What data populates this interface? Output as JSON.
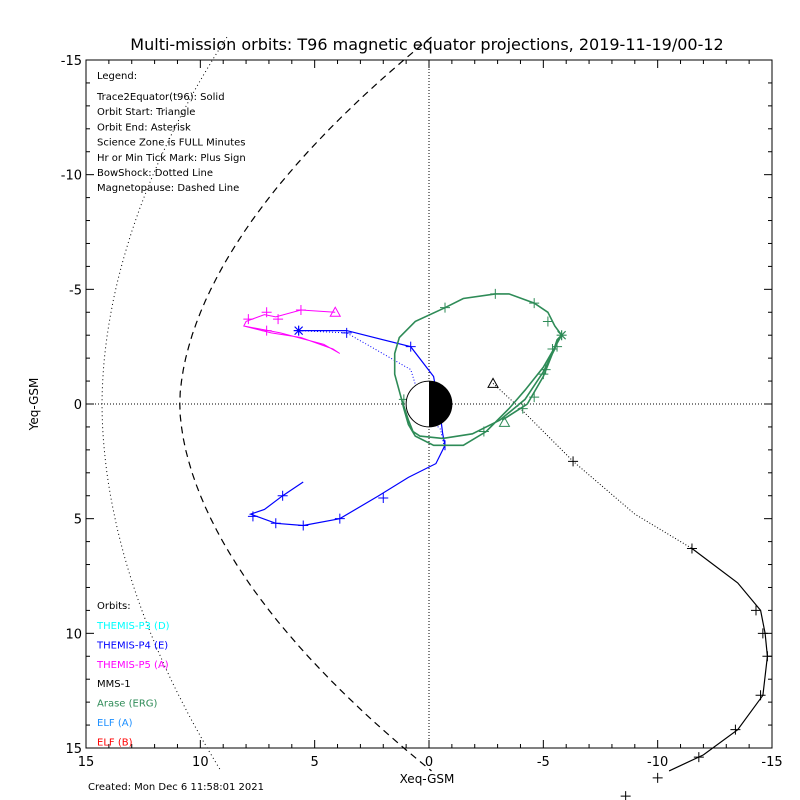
{
  "chart_data": {
    "type": "line",
    "title": "Multi-mission orbits: T96 magnetic equator projections, 2019-11-19/00-12",
    "xlabel": "Xeq-GSM",
    "ylabel": "Yeq-GSM",
    "xlim": [
      15,
      -15
    ],
    "ylim": [
      -15,
      15
    ],
    "xticks": [
      15,
      10,
      5,
      0,
      -5,
      -10,
      -15
    ],
    "xtick_labels": [
      "15",
      "10",
      "5",
      "0",
      "-5",
      "-10",
      "-15"
    ],
    "yticks": [
      -15,
      -10,
      -5,
      0,
      5,
      10,
      15
    ],
    "ytick_labels": [
      "-15",
      "-10",
      "-5",
      "0",
      "5",
      "10",
      "15"
    ],
    "created": "Created: Mon Dec  6 11:58:01 2021",
    "legend_title": "Legend:",
    "legend_lines": [
      "Trace2Equator(t96): Solid",
      "Orbit Start: Triangle",
      "Orbit End: Asterisk",
      "Science Zone is FULL Minutes",
      "Hr or Min Tick Mark: Plus Sign",
      "BowShock: Dotted Line",
      "Magnetopause: Dashed Line"
    ],
    "orbits_title": "Orbits:",
    "orbit_labels": [
      {
        "name": "THEMIS-P3 (D)",
        "color": "#00ffff"
      },
      {
        "name": "THEMIS-P4 (E)",
        "color": "#0000ff"
      },
      {
        "name": "THEMIS-P5 (A)",
        "color": "#ff00ff"
      },
      {
        "name": "MMS-1",
        "color": "#000000"
      },
      {
        "name": "Arase (ERG)",
        "color": "#2e8b57"
      },
      {
        "name": "ELF (A)",
        "color": "#1e90ff"
      },
      {
        "name": "ELF (B)",
        "color": "#ff0000"
      }
    ],
    "series": [
      {
        "name": "THEMIS-P4 (E)",
        "color": "#0000ff",
        "points": [
          [
            -0.7,
            2.0
          ],
          [
            -0.5,
            1.1
          ],
          [
            0.2,
            0.4
          ],
          [
            0.8,
            -1.5
          ],
          [
            3.6,
            -3.1
          ],
          [
            5.7,
            -3.2
          ],
          [
            5.7,
            -3.2
          ],
          [
            3.6,
            -3.2
          ],
          [
            0.8,
            -2.5
          ],
          [
            -0.2,
            -1.2
          ],
          [
            -0.5,
            0.5
          ],
          [
            -0.6,
            1.3
          ],
          [
            -0.7,
            1.8
          ],
          [
            -0.3,
            2.6
          ],
          [
            0.9,
            3.2
          ],
          [
            2.2,
            4.0
          ],
          [
            3.9,
            5.0
          ],
          [
            5.5,
            5.3
          ],
          [
            6.7,
            5.2
          ],
          [
            7.8,
            4.8
          ],
          [
            7.2,
            4.6
          ],
          [
            6.4,
            4.0
          ],
          [
            5.5,
            3.4
          ]
        ],
        "dotted_segment_end_index": 5,
        "ticks": [
          [
            0.8,
            -2.5
          ],
          [
            3.6,
            -3.1
          ],
          [
            -0.7,
            1.8
          ],
          [
            2.0,
            4.1
          ],
          [
            3.9,
            5.0
          ],
          [
            5.5,
            5.3
          ],
          [
            6.7,
            5.2
          ],
          [
            7.7,
            4.9
          ],
          [
            6.4,
            4.0
          ]
        ],
        "end": [
          5.7,
          -3.2
        ]
      },
      {
        "name": "THEMIS-P5 (A)",
        "color": "#ff00ff",
        "points": [
          [
            4.1,
            -4.0
          ],
          [
            5.6,
            -4.1
          ],
          [
            6.7,
            -3.8
          ],
          [
            7.2,
            -3.9
          ],
          [
            8.0,
            -3.6
          ],
          [
            8.1,
            -3.4
          ],
          [
            6.5,
            -3.1
          ],
          [
            4.6,
            -2.6
          ],
          [
            3.9,
            -2.2
          ],
          [
            4.2,
            -2.4
          ],
          [
            5.6,
            -2.9
          ],
          [
            6.9,
            -3.1
          ],
          [
            8.1,
            -3.4
          ]
        ],
        "start": [
          4.1,
          -4.0
        ],
        "ticks": [
          [
            5.6,
            -4.1
          ],
          [
            6.6,
            -3.7
          ],
          [
            7.1,
            -4.0
          ],
          [
            7.9,
            -3.7
          ],
          [
            7.1,
            -3.2
          ]
        ]
      },
      {
        "name": "MMS-1",
        "color": "#000000",
        "points": [
          [
            -2.8,
            -0.9
          ],
          [
            -4.0,
            0.2
          ],
          [
            -6.3,
            2.5
          ],
          [
            -9.0,
            4.8
          ],
          [
            -11.5,
            6.3
          ],
          [
            -13.5,
            7.8
          ],
          [
            -14.5,
            9.0
          ],
          [
            -14.7,
            10.0
          ],
          [
            -14.8,
            11.0
          ],
          [
            -14.6,
            12.7
          ],
          [
            -13.5,
            14.2
          ],
          [
            -12.0,
            15.3
          ],
          [
            -10.5,
            16.0
          ]
        ],
        "dotted_segment_end_index": 4,
        "start": [
          -2.8,
          -0.9
        ],
        "ticks": [
          [
            -6.3,
            2.5
          ],
          [
            -11.5,
            6.3
          ],
          [
            -14.3,
            9.0
          ],
          [
            -14.6,
            10.0
          ],
          [
            -14.8,
            11.0
          ],
          [
            -14.5,
            12.7
          ],
          [
            -13.4,
            14.2
          ],
          [
            -11.8,
            15.4
          ],
          [
            -10.0,
            16.3
          ],
          [
            -8.6,
            17.1
          ]
        ]
      },
      {
        "name": "Arase (ERG)",
        "color": "#2e8b57",
        "points": [
          [
            -3.2,
            0.7
          ],
          [
            -4.3,
            0.0
          ],
          [
            -5.0,
            -1.2
          ],
          [
            -5.4,
            -2.2
          ],
          [
            -5.6,
            -2.8
          ],
          [
            -5.8,
            -3.0
          ],
          [
            -5.5,
            -3.4
          ],
          [
            -5.2,
            -4.0
          ],
          [
            -4.6,
            -4.4
          ],
          [
            -3.5,
            -4.8
          ],
          [
            -2.9,
            -4.8
          ],
          [
            -1.5,
            -4.6
          ],
          [
            -0.7,
            -4.2
          ],
          [
            0.6,
            -3.6
          ],
          [
            1.3,
            -2.9
          ],
          [
            1.5,
            -2.2
          ],
          [
            1.5,
            -1.3
          ],
          [
            1.2,
            -0.2
          ],
          [
            0.9,
            0.7
          ],
          [
            0.7,
            1.2
          ],
          [
            0.4,
            1.4
          ],
          [
            -0.6,
            1.5
          ],
          [
            -1.9,
            1.3
          ],
          [
            -3.1,
            0.7
          ],
          [
            -4.2,
            -0.2
          ],
          [
            -5.0,
            -1.4
          ],
          [
            -5.5,
            -2.4
          ],
          [
            -5.6,
            -2.8
          ],
          [
            -5.8,
            -3.0
          ],
          [
            -5.4,
            -2.3
          ],
          [
            -5.0,
            -1.6
          ],
          [
            -4.2,
            -0.6
          ],
          [
            -3.5,
            0.2
          ],
          [
            -2.5,
            1.2
          ],
          [
            -1.5,
            1.8
          ],
          [
            -0.2,
            1.8
          ],
          [
            0.6,
            1.4
          ],
          [
            0.9,
            0.9
          ],
          [
            1.1,
            0.2
          ],
          [
            1.2,
            -0.2
          ]
        ],
        "start": [
          -3.3,
          0.8
        ],
        "end": [
          -5.8,
          -3.0
        ],
        "ticks": [
          [
            -2.4,
            1.2
          ],
          [
            -4.1,
            0.2
          ],
          [
            -4.6,
            -0.3
          ],
          [
            -5.0,
            -1.3
          ],
          [
            -5.1,
            -1.5
          ],
          [
            -5.4,
            -2.4
          ],
          [
            -5.6,
            -2.5
          ],
          [
            -5.2,
            -3.6
          ],
          [
            -4.6,
            -4.4
          ],
          [
            -2.9,
            -4.8
          ],
          [
            -0.7,
            -4.2
          ],
          [
            1.1,
            -0.2
          ]
        ]
      }
    ],
    "bowshock": {
      "nose_x": 14.3,
      "flank_x_at_y15": 9.7
    },
    "magnetopause": {
      "nose_x": 10.9,
      "points_x_at_y15": 1.1
    }
  }
}
